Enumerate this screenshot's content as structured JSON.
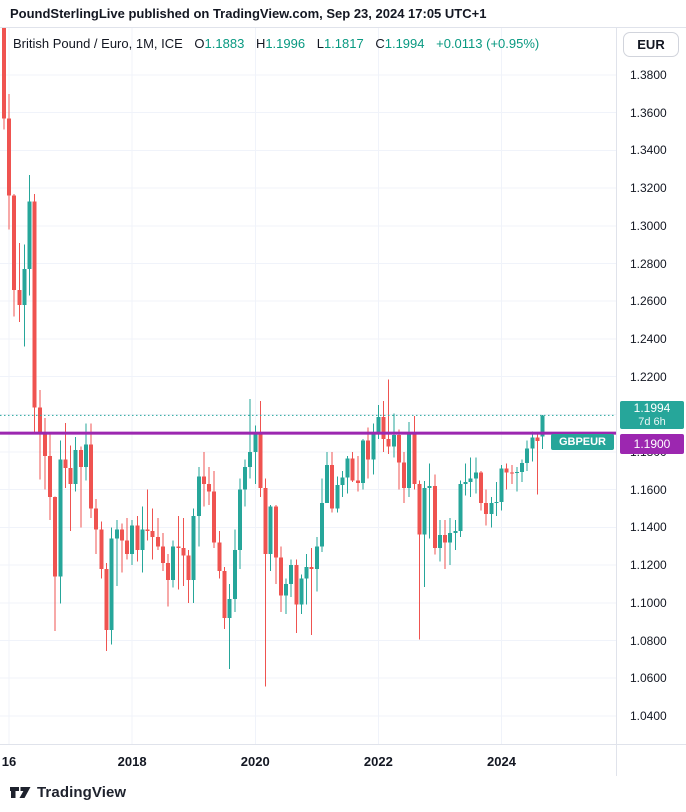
{
  "header": {
    "attribution": "PoundSterlingLive published on TradingView.com, Sep 23, 2024 17:05 UTC+1"
  },
  "legend": {
    "title": "British Pound / Euro, 1M, ICE",
    "ohlc": [
      {
        "label": "O",
        "value": "1.1883"
      },
      {
        "label": "H",
        "value": "1.1996"
      },
      {
        "label": "L",
        "value": "1.1817"
      },
      {
        "label": "C",
        "value": "1.1994"
      }
    ],
    "change": "+0.0113 (+0.95%)"
  },
  "toolbar": {
    "currency_button": "EUR"
  },
  "price_scale": {
    "labels": [
      "1.3800",
      "1.3600",
      "1.3400",
      "1.3200",
      "1.3000",
      "1.2800",
      "1.2600",
      "1.2400",
      "1.2200",
      "1.2000",
      "1.1800",
      "1.1600",
      "1.1400",
      "1.1200",
      "1.1000",
      "1.0800",
      "1.0600",
      "1.0400"
    ],
    "last_price_badge": {
      "price": "1.1994",
      "countdown": "7d 6h"
    },
    "line_badge": "1.1900"
  },
  "chart_overlay": {
    "symbol_badge": "GBPEUR"
  },
  "time_axis": {
    "ticks": [
      {
        "label": "16",
        "month_index": 1
      },
      {
        "label": "2018",
        "month_index": 25
      },
      {
        "label": "2020",
        "month_index": 49
      },
      {
        "label": "2022",
        "month_index": 73
      },
      {
        "label": "2024",
        "month_index": 97
      }
    ]
  },
  "footer": {
    "brand": "TradingView"
  },
  "colors": {
    "up": "#26A69A",
    "down": "#EF5350",
    "price_line": "#9C27B0",
    "current_line": "#26A69A",
    "badge_last": "#26A69A",
    "badge_line": "#9C27B0",
    "grid": "#f0f3fa",
    "border": "#e0e3eb",
    "text": "#131722",
    "value_text": "#089981"
  },
  "chart_data": {
    "type": "candlestick",
    "title": "British Pound / Euro",
    "symbol": "GBPEUR",
    "interval": "1M",
    "exchange": "ICE",
    "y_domain": [
      1.03,
      1.405
    ],
    "grid_step": 0.02,
    "grid_levels_min": 1.04,
    "grid_levels_max": 1.38,
    "price_line_level": 1.19,
    "current_price": 1.1994,
    "columns": [
      "time",
      "open",
      "high",
      "low",
      "close"
    ],
    "candles": [
      [
        "2015-12",
        1.413,
        1.418,
        1.351,
        1.357
      ],
      [
        "2016-01",
        1.357,
        1.37,
        1.298,
        1.316
      ],
      [
        "2016-02",
        1.316,
        1.317,
        1.252,
        1.266
      ],
      [
        "2016-03",
        1.266,
        1.291,
        1.249,
        1.258
      ],
      [
        "2016-04",
        1.258,
        1.29,
        1.236,
        1.277
      ],
      [
        "2016-05",
        1.277,
        1.327,
        1.263,
        1.313
      ],
      [
        "2016-06",
        1.313,
        1.317,
        1.1895,
        1.2035
      ],
      [
        "2016-07",
        1.2035,
        1.213,
        1.1655,
        1.19
      ],
      [
        "2016-08",
        1.19,
        1.198,
        1.16,
        1.1778
      ],
      [
        "2016-09",
        1.1778,
        1.19,
        1.1438,
        1.156
      ],
      [
        "2016-10",
        1.156,
        1.1565,
        1.085,
        1.114
      ],
      [
        "2016-11",
        1.114,
        1.186,
        1.0995,
        1.176
      ],
      [
        "2016-12",
        1.176,
        1.1955,
        1.161,
        1.1715
      ],
      [
        "2017-01",
        1.1715,
        1.1835,
        1.138,
        1.163
      ],
      [
        "2017-02",
        1.163,
        1.188,
        1.159,
        1.181
      ],
      [
        "2017-03",
        1.181,
        1.183,
        1.14,
        1.172
      ],
      [
        "2017-04",
        1.172,
        1.195,
        1.165,
        1.184
      ],
      [
        "2017-05",
        1.184,
        1.195,
        1.145,
        1.15
      ],
      [
        "2017-06",
        1.15,
        1.155,
        1.126,
        1.139
      ],
      [
        "2017-07",
        1.139,
        1.143,
        1.113,
        1.118
      ],
      [
        "2017-08",
        1.118,
        1.121,
        1.0745,
        1.0855
      ],
      [
        "2017-09",
        1.0855,
        1.14,
        1.078,
        1.134
      ],
      [
        "2017-10",
        1.134,
        1.144,
        1.109,
        1.139
      ],
      [
        "2017-11",
        1.139,
        1.142,
        1.116,
        1.133
      ],
      [
        "2017-12",
        1.133,
        1.145,
        1.123,
        1.126
      ],
      [
        "2018-01",
        1.126,
        1.144,
        1.12,
        1.141
      ],
      [
        "2018-02",
        1.141,
        1.146,
        1.122,
        1.128
      ],
      [
        "2018-03",
        1.128,
        1.151,
        1.116,
        1.139
      ],
      [
        "2018-04",
        1.139,
        1.16,
        1.133,
        1.138
      ],
      [
        "2018-05",
        1.138,
        1.15,
        1.123,
        1.135
      ],
      [
        "2018-06",
        1.135,
        1.145,
        1.128,
        1.13
      ],
      [
        "2018-07",
        1.13,
        1.137,
        1.117,
        1.121
      ],
      [
        "2018-08",
        1.121,
        1.126,
        1.098,
        1.112
      ],
      [
        "2018-09",
        1.112,
        1.133,
        1.108,
        1.13
      ],
      [
        "2018-10",
        1.13,
        1.146,
        1.107,
        1.129
      ],
      [
        "2018-11",
        1.129,
        1.145,
        1.109,
        1.125
      ],
      [
        "2018-12",
        1.125,
        1.128,
        1.1,
        1.112
      ],
      [
        "2019-01",
        1.112,
        1.15,
        1.1,
        1.146
      ],
      [
        "2019-02",
        1.146,
        1.172,
        1.13,
        1.167
      ],
      [
        "2019-03",
        1.167,
        1.18,
        1.151,
        1.163
      ],
      [
        "2019-04",
        1.163,
        1.172,
        1.152,
        1.159
      ],
      [
        "2019-05",
        1.159,
        1.17,
        1.129,
        1.132
      ],
      [
        "2019-06",
        1.132,
        1.138,
        1.113,
        1.117
      ],
      [
        "2019-07",
        1.117,
        1.119,
        1.086,
        1.092
      ],
      [
        "2019-08",
        1.092,
        1.11,
        1.065,
        1.102
      ],
      [
        "2019-09",
        1.102,
        1.139,
        1.095,
        1.128
      ],
      [
        "2019-10",
        1.128,
        1.166,
        1.118,
        1.16
      ],
      [
        "2019-11",
        1.16,
        1.176,
        1.151,
        1.172
      ],
      [
        "2019-12",
        1.172,
        1.208,
        1.166,
        1.18
      ],
      [
        "2020-01",
        1.18,
        1.194,
        1.163,
        1.19
      ],
      [
        "2020-02",
        1.19,
        1.207,
        1.156,
        1.161
      ],
      [
        "2020-03",
        1.161,
        1.166,
        1.0555,
        1.126
      ],
      [
        "2020-04",
        1.126,
        1.152,
        1.117,
        1.151
      ],
      [
        "2020-05",
        1.151,
        1.152,
        1.11,
        1.124
      ],
      [
        "2020-06",
        1.124,
        1.13,
        1.095,
        1.104
      ],
      [
        "2020-07",
        1.104,
        1.113,
        1.094,
        1.11
      ],
      [
        "2020-08",
        1.11,
        1.123,
        1.103,
        1.12
      ],
      [
        "2020-09",
        1.12,
        1.123,
        1.084,
        1.099
      ],
      [
        "2020-10",
        1.099,
        1.115,
        1.094,
        1.113
      ],
      [
        "2020-11",
        1.113,
        1.126,
        1.099,
        1.119
      ],
      [
        "2020-12",
        1.119,
        1.129,
        1.083,
        1.118
      ],
      [
        "2021-01",
        1.118,
        1.135,
        1.106,
        1.13
      ],
      [
        "2021-02",
        1.13,
        1.166,
        1.127,
        1.153
      ],
      [
        "2021-03",
        1.153,
        1.18,
        1.153,
        1.173
      ],
      [
        "2021-04",
        1.173,
        1.18,
        1.148,
        1.15
      ],
      [
        "2021-05",
        1.15,
        1.167,
        1.148,
        1.1625
      ],
      [
        "2021-06",
        1.1625,
        1.17,
        1.156,
        1.1665
      ],
      [
        "2021-07",
        1.1665,
        1.178,
        1.158,
        1.1765
      ],
      [
        "2021-08",
        1.1765,
        1.18,
        1.164,
        1.165
      ],
      [
        "2021-09",
        1.165,
        1.178,
        1.159,
        1.1635
      ],
      [
        "2021-10",
        1.1635,
        1.187,
        1.16,
        1.186
      ],
      [
        "2021-11",
        1.186,
        1.193,
        1.166,
        1.176
      ],
      [
        "2021-12",
        1.176,
        1.195,
        1.168,
        1.1905
      ],
      [
        "2022-01",
        1.1905,
        1.205,
        1.187,
        1.1985
      ],
      [
        "2022-02",
        1.1985,
        1.207,
        1.18,
        1.187
      ],
      [
        "2022-03",
        1.187,
        1.2185,
        1.179,
        1.183
      ],
      [
        "2022-04",
        1.183,
        1.2005,
        1.177,
        1.189
      ],
      [
        "2022-05",
        1.189,
        1.192,
        1.16,
        1.1745
      ],
      [
        "2022-06",
        1.1745,
        1.18,
        1.153,
        1.161
      ],
      [
        "2022-07",
        1.161,
        1.196,
        1.156,
        1.1905
      ],
      [
        "2022-08",
        1.1905,
        1.199,
        1.16,
        1.163
      ],
      [
        "2022-09",
        1.163,
        1.165,
        1.0805,
        1.1363
      ],
      [
        "2022-10",
        1.1363,
        1.1645,
        1.1085,
        1.161
      ],
      [
        "2022-11",
        1.161,
        1.174,
        1.134,
        1.162
      ],
      [
        "2022-12",
        1.162,
        1.168,
        1.1255,
        1.129
      ],
      [
        "2023-01",
        1.129,
        1.144,
        1.122,
        1.136
      ],
      [
        "2023-02",
        1.136,
        1.144,
        1.118,
        1.132
      ],
      [
        "2023-03",
        1.132,
        1.145,
        1.12,
        1.137
      ],
      [
        "2023-04",
        1.137,
        1.144,
        1.128,
        1.138
      ],
      [
        "2023-05",
        1.138,
        1.165,
        1.135,
        1.163
      ],
      [
        "2023-06",
        1.163,
        1.174,
        1.157,
        1.164
      ],
      [
        "2023-07",
        1.164,
        1.177,
        1.156,
        1.166
      ],
      [
        "2023-08",
        1.166,
        1.177,
        1.158,
        1.169
      ],
      [
        "2023-09",
        1.169,
        1.17,
        1.149,
        1.153
      ],
      [
        "2023-10",
        1.153,
        1.16,
        1.141,
        1.147
      ],
      [
        "2023-11",
        1.147,
        1.156,
        1.14,
        1.153
      ],
      [
        "2023-12",
        1.153,
        1.164,
        1.146,
        1.1535
      ],
      [
        "2024-01",
        1.1535,
        1.173,
        1.149,
        1.1712
      ],
      [
        "2024-02",
        1.1712,
        1.174,
        1.16,
        1.169
      ],
      [
        "2024-03",
        1.169,
        1.173,
        1.163,
        1.1688
      ],
      [
        "2024-04",
        1.1688,
        1.172,
        1.159,
        1.1694
      ],
      [
        "2024-05",
        1.1694,
        1.176,
        1.164,
        1.1742
      ],
      [
        "2024-06",
        1.1742,
        1.186,
        1.17,
        1.1818
      ],
      [
        "2024-07",
        1.1818,
        1.191,
        1.175,
        1.1876
      ],
      [
        "2024-08",
        1.1876,
        1.1905,
        1.1575,
        1.1858
      ],
      [
        "2024-09",
        1.1883,
        1.1996,
        1.1817,
        1.1994
      ]
    ]
  }
}
